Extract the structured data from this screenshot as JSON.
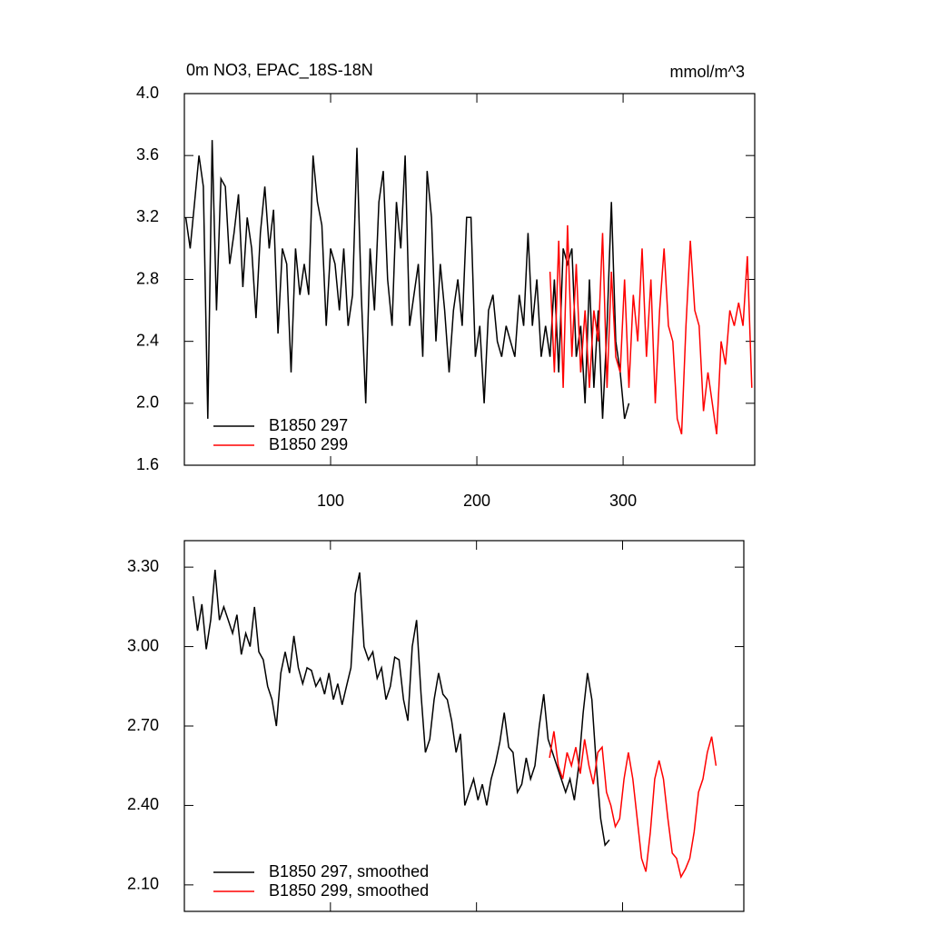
{
  "chart_data": [
    {
      "type": "line",
      "title": "0m NO3, EPAC_18S-18N",
      "units": "mmol/m^3",
      "xlim": [
        0,
        390
      ],
      "xticks": [
        100,
        200,
        300
      ],
      "ylim": [
        1.6,
        4.0
      ],
      "yticks": [
        {
          "value": 1.6,
          "label": "1.6"
        },
        {
          "value": 2.0,
          "label": "2.0"
        },
        2.4,
        2.8,
        3.2,
        3.6,
        {
          "value": 4.0,
          "label": "4.0"
        }
      ],
      "legend": "lower left",
      "series": [
        {
          "name": "B1850 297",
          "color": "#000000",
          "x": [
            1,
            4,
            7,
            10,
            13,
            16,
            19,
            22,
            25,
            28,
            31,
            34,
            37,
            40,
            43,
            46,
            49,
            52,
            55,
            58,
            61,
            64,
            67,
            70,
            73,
            76,
            79,
            82,
            85,
            88,
            91,
            94,
            97,
            100,
            103,
            106,
            109,
            112,
            115,
            118,
            121,
            124,
            127,
            130,
            133,
            136,
            139,
            142,
            145,
            148,
            151,
            154,
            157,
            160,
            163,
            166,
            169,
            172,
            175,
            178,
            181,
            184,
            187,
            190,
            193,
            196,
            199,
            202,
            205,
            208,
            211,
            214,
            217,
            220,
            223,
            226,
            229,
            232,
            235,
            238,
            241,
            244,
            247,
            250,
            253,
            256,
            259,
            262,
            265,
            268,
            271,
            274,
            277,
            280,
            283,
            286,
            289,
            292,
            295,
            298,
            301,
            304
          ],
          "values": [
            3.2,
            3.0,
            3.3,
            3.6,
            3.4,
            1.9,
            3.7,
            2.6,
            3.45,
            3.4,
            2.9,
            3.1,
            3.35,
            2.75,
            3.2,
            3.0,
            2.55,
            3.1,
            3.4,
            3.0,
            3.25,
            2.45,
            3.0,
            2.9,
            2.2,
            3.0,
            2.7,
            2.9,
            2.7,
            3.6,
            3.3,
            3.15,
            2.5,
            3.0,
            2.9,
            2.6,
            3.0,
            2.5,
            2.7,
            3.65,
            2.7,
            2.0,
            3.0,
            2.6,
            3.3,
            3.5,
            2.8,
            2.5,
            3.3,
            3.0,
            3.6,
            2.5,
            2.7,
            2.9,
            2.3,
            3.5,
            3.2,
            2.4,
            2.9,
            2.6,
            2.2,
            2.6,
            2.8,
            2.5,
            3.2,
            3.2,
            2.3,
            2.5,
            2.0,
            2.6,
            2.7,
            2.4,
            2.3,
            2.5,
            2.4,
            2.3,
            2.7,
            2.5,
            3.1,
            2.5,
            2.8,
            2.3,
            2.5,
            2.3,
            2.8,
            2.2,
            3.0,
            2.9,
            3.0,
            2.3,
            2.5,
            2.0,
            2.8,
            2.1,
            2.6,
            1.9,
            2.5,
            3.3,
            2.4,
            2.2,
            1.9,
            2.0
          ]
        },
        {
          "name": "B1850 299",
          "color": "#ff0000",
          "x": [
            250,
            253,
            256,
            259,
            262,
            265,
            268,
            271,
            274,
            277,
            280,
            283,
            286,
            289,
            292,
            295,
            298,
            301,
            304,
            307,
            310,
            313,
            316,
            319,
            322,
            325,
            328,
            331,
            334,
            337,
            340,
            343,
            346,
            349,
            352,
            355,
            358,
            361,
            364,
            367,
            370,
            373,
            376,
            379,
            382,
            385,
            388
          ],
          "values": [
            2.85,
            2.2,
            3.05,
            2.1,
            3.15,
            2.3,
            2.9,
            2.2,
            2.6,
            2.1,
            2.6,
            2.4,
            3.1,
            2.1,
            2.85,
            2.3,
            2.2,
            2.8,
            2.1,
            2.7,
            2.4,
            3.0,
            2.3,
            2.8,
            2.0,
            2.6,
            3.0,
            2.5,
            2.4,
            1.9,
            1.8,
            2.5,
            3.05,
            2.6,
            2.5,
            1.95,
            2.2,
            2.0,
            1.8,
            2.4,
            2.25,
            2.6,
            2.5,
            2.65,
            2.5,
            2.95,
            2.1
          ]
        }
      ]
    },
    {
      "type": "line",
      "xlim": [
        0,
        383
      ],
      "xticks": [
        100,
        200,
        300
      ],
      "xtick_labels": false,
      "ylim": [
        2.0,
        3.4
      ],
      "yticks": [
        {
          "value": 2.1,
          "label": "2.10"
        },
        {
          "value": 2.4,
          "label": "2.40"
        },
        {
          "value": 2.7,
          "label": "2.70"
        },
        {
          "value": 3.0,
          "label": "3.00"
        },
        {
          "value": 3.3,
          "label": "3.30"
        }
      ],
      "legend": "lower left",
      "series": [
        {
          "name": "B1850 297, smoothed",
          "color": "#000000",
          "x": [
            6,
            9,
            12,
            15,
            18,
            21,
            24,
            27,
            30,
            33,
            36,
            39,
            42,
            45,
            48,
            51,
            54,
            57,
            60,
            63,
            66,
            69,
            72,
            75,
            78,
            81,
            84,
            87,
            90,
            93,
            96,
            99,
            102,
            105,
            108,
            111,
            114,
            117,
            120,
            123,
            126,
            129,
            132,
            135,
            138,
            141,
            144,
            147,
            150,
            153,
            156,
            159,
            162,
            165,
            168,
            171,
            174,
            177,
            180,
            183,
            186,
            189,
            192,
            195,
            198,
            201,
            204,
            207,
            210,
            213,
            216,
            219,
            222,
            225,
            228,
            231,
            234,
            237,
            240,
            243,
            246,
            249,
            252,
            255,
            258,
            261,
            264,
            267,
            270,
            273,
            276,
            279,
            282,
            285,
            288,
            291
          ],
          "values": [
            3.19,
            3.06,
            3.16,
            2.99,
            3.1,
            3.29,
            3.1,
            3.15,
            3.1,
            3.05,
            3.12,
            2.97,
            3.05,
            3.0,
            3.15,
            2.98,
            2.95,
            2.85,
            2.8,
            2.7,
            2.9,
            2.98,
            2.9,
            3.04,
            2.92,
            2.86,
            2.92,
            2.91,
            2.85,
            2.88,
            2.82,
            2.9,
            2.8,
            2.86,
            2.78,
            2.85,
            2.92,
            3.2,
            3.28,
            3.0,
            2.95,
            2.98,
            2.88,
            2.92,
            2.8,
            2.85,
            2.96,
            2.95,
            2.8,
            2.72,
            3.0,
            3.1,
            2.82,
            2.6,
            2.65,
            2.8,
            2.9,
            2.82,
            2.8,
            2.72,
            2.6,
            2.67,
            2.4,
            2.45,
            2.5,
            2.42,
            2.48,
            2.4,
            2.5,
            2.56,
            2.64,
            2.75,
            2.62,
            2.6,
            2.45,
            2.48,
            2.58,
            2.5,
            2.55,
            2.7,
            2.82,
            2.65,
            2.6,
            2.55,
            2.5,
            2.45,
            2.5,
            2.42,
            2.55,
            2.75,
            2.9,
            2.8,
            2.55,
            2.35,
            2.25,
            2.27
          ]
        },
        {
          "name": "B1850 299, smoothed",
          "color": "#ff0000",
          "x": [
            250,
            253,
            256,
            259,
            262,
            265,
            268,
            271,
            274,
            277,
            280,
            283,
            286,
            289,
            292,
            295,
            298,
            301,
            304,
            307,
            310,
            313,
            316,
            319,
            322,
            325,
            328,
            331,
            334,
            337,
            340,
            343,
            346,
            349,
            352,
            355,
            358,
            361,
            364
          ],
          "values": [
            2.58,
            2.68,
            2.55,
            2.5,
            2.6,
            2.55,
            2.62,
            2.52,
            2.65,
            2.55,
            2.48,
            2.6,
            2.62,
            2.45,
            2.4,
            2.32,
            2.35,
            2.5,
            2.6,
            2.5,
            2.35,
            2.2,
            2.15,
            2.3,
            2.5,
            2.57,
            2.5,
            2.35,
            2.22,
            2.2,
            2.13,
            2.16,
            2.2,
            2.3,
            2.45,
            2.5,
            2.6,
            2.66,
            2.55
          ]
        }
      ]
    }
  ]
}
